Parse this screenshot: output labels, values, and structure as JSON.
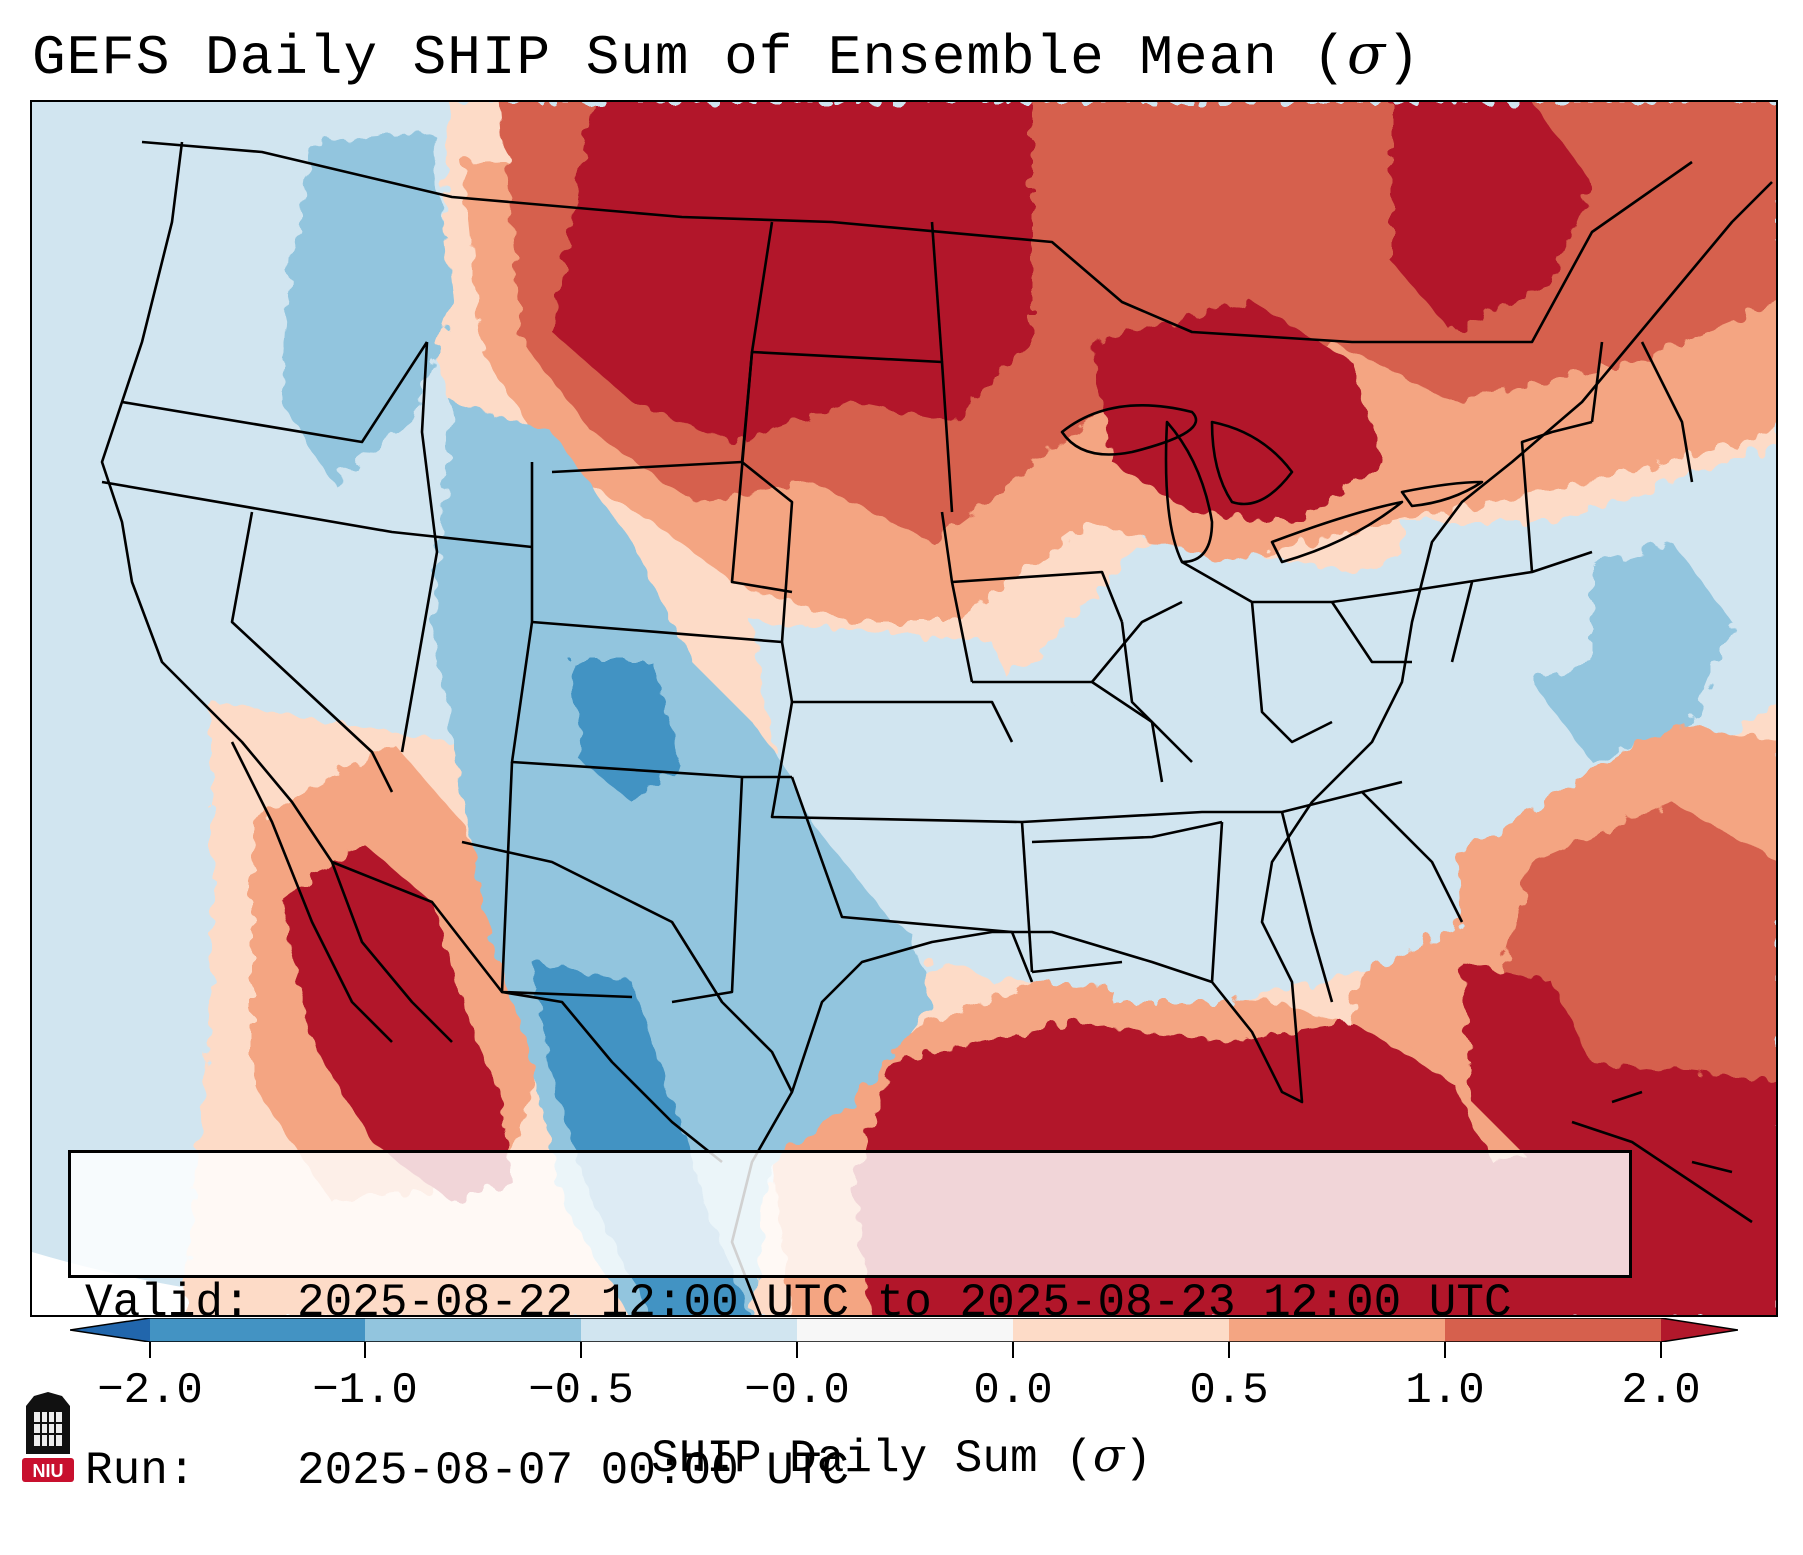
{
  "title": {
    "text": "GEFS Daily SHIP Sum of Ensemble Mean (",
    "symbol": "σ",
    "suffix": ")"
  },
  "map": {
    "variable": "SHIP Daily Sum",
    "region": "Contiguous United States",
    "anomaly_regions": [
      {
        "name": "Northern Plains / Canadian Prairies",
        "category": "above 1.0"
      },
      {
        "name": "Upper Great Lakes",
        "category": "above 1.0"
      },
      {
        "name": "Desert Southwest / Baja",
        "category": "above 1.0"
      },
      {
        "name": "Gulf of Mexico / Florida",
        "category": "above 1.0"
      },
      {
        "name": "Western Atlantic",
        "category": "0.5 to 1.0"
      },
      {
        "name": "West Texas / New Mexico",
        "category": "-1.0 to -0.5"
      },
      {
        "name": "Mexican Plateau",
        "category": "-2.0 to -1.0"
      }
    ]
  },
  "infobox": {
    "valid_label": "Valid:",
    "valid_value": "2025-08-22 12:00 UTC to 2025-08-23 12:00 UTC",
    "run_label": "Run:",
    "run_value": "2025-08-07 00:00 UTC"
  },
  "colorbar": {
    "ticks": [
      "−2.0",
      "−1.0",
      "−0.5",
      "−0.0",
      "0.0",
      "0.5",
      "1.0",
      "2.0"
    ],
    "colors": {
      "under": "#2166ac",
      "b1": "#4393c3",
      "b2": "#92c5de",
      "b3": "#d1e5f0",
      "b4": "#f7f7f7",
      "b5": "#fddbc7",
      "b6": "#f4a582",
      "b7": "#d6604d",
      "over": "#b2182b"
    },
    "label_text": "SHIP Daily Sum (",
    "label_symbol": "σ",
    "label_suffix": ")"
  },
  "logo": {
    "text": "NIU",
    "color": "#c8102e"
  }
}
